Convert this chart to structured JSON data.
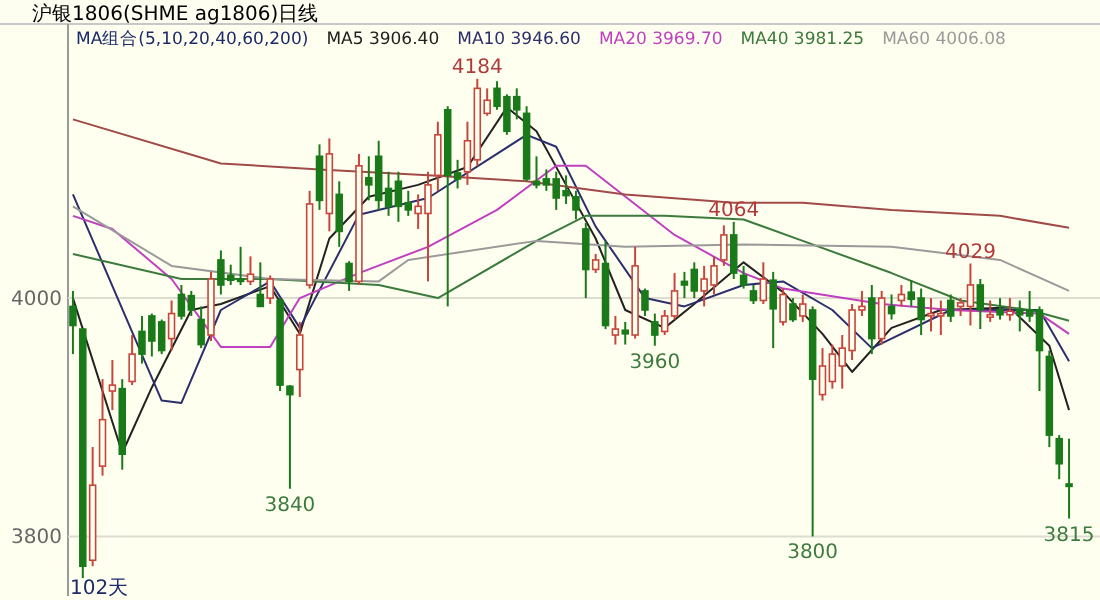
{
  "chart_data": {
    "type": "candlestick",
    "title": "沪银1806(SHME ag1806)日线",
    "legend_title": "MA组合(5,10,20,40,60,200)",
    "legend": "top",
    "grid": "y",
    "ylim": [
      3750,
      4230
    ],
    "yticks": [
      4000,
      3800
    ],
    "categories": [
      null,
      null,
      null,
      null,
      null,
      null,
      null,
      null,
      null,
      null,
      null,
      null,
      null,
      null,
      null,
      null,
      null,
      null,
      null,
      null,
      null,
      null,
      null,
      null,
      null,
      null,
      null,
      null,
      null,
      null,
      null,
      null,
      null,
      null,
      null,
      null,
      null,
      null,
      null,
      null,
      null,
      null,
      null,
      null,
      null,
      null,
      null,
      null,
      null,
      null,
      null,
      null,
      null,
      null,
      null,
      null,
      null,
      null,
      null,
      null,
      null,
      null,
      null,
      null,
      null,
      null,
      null,
      null,
      null,
      null,
      null,
      null,
      null,
      null,
      null,
      null,
      null,
      null,
      null,
      null,
      null,
      null,
      null,
      null,
      null,
      null,
      null,
      null,
      null,
      null,
      null,
      null,
      null,
      null,
      null,
      null,
      null,
      null,
      null,
      null,
      null,
      null
    ],
    "ohlc": [
      [
        3993,
        4006,
        3953,
        3977
      ],
      [
        3974,
        3974,
        3765,
        3775
      ],
      [
        3780,
        3875,
        3775,
        3843
      ],
      [
        3859,
        3932,
        3851,
        3898
      ],
      [
        3922,
        3948,
        3906,
        3927
      ],
      [
        3924,
        3932,
        3856,
        3869
      ],
      [
        3930,
        3969,
        3927,
        3953
      ],
      [
        3972,
        3985,
        3945,
        3953
      ],
      [
        3985,
        3987,
        3951,
        3964
      ],
      [
        3980,
        3982,
        3953,
        3956
      ],
      [
        3966,
        3998,
        3956,
        3987
      ],
      [
        4003,
        4011,
        3982,
        3985
      ],
      [
        4002,
        4006,
        3985,
        3990
      ],
      [
        3982,
        3993,
        3958,
        3961
      ],
      [
        3969,
        4022,
        3964,
        4016
      ],
      [
        4032,
        4040,
        4003,
        4011
      ],
      [
        4019,
        4028,
        4011,
        4015
      ],
      [
        4016,
        4043,
        4011,
        4014
      ],
      [
        4014,
        4035,
        4011,
        4020
      ],
      [
        4003,
        4030,
        3993,
        3993
      ],
      [
        4000,
        4019,
        3995,
        4016
      ],
      [
        3998,
        4000,
        3922,
        3927
      ],
      [
        3926,
        3927,
        3840,
        3919
      ],
      [
        3940,
        3980,
        3917,
        3969
      ],
      [
        4011,
        4090,
        4008,
        4079
      ],
      [
        4119,
        4129,
        4074,
        4082
      ],
      [
        4071,
        4134,
        4056,
        4121
      ],
      [
        4087,
        4098,
        4043,
        4056
      ],
      [
        4029,
        4031,
        4006,
        4014
      ],
      [
        4014,
        4121,
        4011,
        4111
      ],
      [
        4101,
        4119,
        4082,
        4095
      ],
      [
        4119,
        4132,
        4074,
        4082
      ],
      [
        4092,
        4106,
        4069,
        4077
      ],
      [
        4098,
        4106,
        4064,
        4077
      ],
      [
        4080,
        4090,
        4069,
        4074
      ],
      [
        4071,
        4087,
        4058,
        4077
      ],
      [
        4071,
        4106,
        4014,
        4095
      ],
      [
        4103,
        4148,
        4090,
        4137
      ],
      [
        4158,
        4161,
        3993,
        4103
      ],
      [
        4105,
        4116,
        4092,
        4100
      ],
      [
        4106,
        4148,
        4095,
        4132
      ],
      [
        4116,
        4184,
        4111,
        4176
      ],
      [
        4155,
        4176,
        4153,
        4166
      ],
      [
        4176,
        4182,
        4158,
        4161
      ],
      [
        4169,
        4171,
        4137,
        4140
      ],
      [
        4169,
        4176,
        4150,
        4158
      ],
      [
        4155,
        4161,
        4098,
        4100
      ],
      [
        4098,
        4119,
        4092,
        4095
      ],
      [
        4100,
        4108,
        4090,
        4095
      ],
      [
        4100,
        4106,
        4074,
        4084
      ],
      [
        4090,
        4103,
        4079,
        4086
      ],
      [
        4085,
        4090,
        4066,
        4074
      ],
      [
        4058,
        4063,
        4000,
        4024
      ],
      [
        4024,
        4037,
        4021,
        4032
      ],
      [
        4029,
        4048,
        3974,
        3977
      ],
      [
        3969,
        3985,
        3961,
        3974
      ],
      [
        3973,
        3980,
        3961,
        3970
      ],
      [
        3969,
        4043,
        3966,
        4027
      ],
      [
        4006,
        4008,
        3985,
        3990
      ],
      [
        3980,
        3987,
        3960,
        3969
      ],
      [
        3972,
        3990,
        3969,
        3985
      ],
      [
        3985,
        4021,
        3982,
        4006
      ],
      [
        4014,
        4022,
        4000,
        4011
      ],
      [
        4024,
        4030,
        4000,
        4006
      ],
      [
        4006,
        4027,
        3993,
        4016
      ],
      [
        4011,
        4035,
        4003,
        4027
      ],
      [
        4032,
        4061,
        4027,
        4053
      ],
      [
        4053,
        4064,
        4016,
        4021
      ],
      [
        4019,
        4027,
        4008,
        4011
      ],
      [
        4006,
        4011,
        3995,
        3998
      ],
      [
        3998,
        4030,
        3995,
        4016
      ],
      [
        4015,
        4022,
        3958,
        3991
      ],
      [
        3980,
        4008,
        3977,
        4003
      ],
      [
        3995,
        4000,
        3980,
        3982
      ],
      [
        3985,
        4003,
        3980,
        3995
      ],
      [
        3990,
        3993,
        3800,
        3932
      ],
      [
        3919,
        3958,
        3914,
        3943
      ],
      [
        3930,
        3961,
        3924,
        3953
      ],
      [
        3943,
        3969,
        3924,
        3958
      ],
      [
        3956,
        3995,
        3948,
        3990
      ],
      [
        3990,
        4006,
        3985,
        3993
      ],
      [
        4000,
        4011,
        3953,
        3966
      ],
      [
        3966,
        4006,
        3961,
        4000
      ],
      [
        3993,
        4003,
        3982,
        3987
      ],
      [
        3998,
        4011,
        3993,
        4003
      ],
      [
        4005,
        4015,
        3993,
        3999
      ],
      [
        4000,
        4008,
        3969,
        3982
      ],
      [
        3985,
        4000,
        3972,
        3987
      ],
      [
        3985,
        3998,
        3969,
        3987
      ],
      [
        3998,
        4003,
        3980,
        3985
      ],
      [
        3993,
        4000,
        3985,
        3996
      ],
      [
        3993,
        4029,
        3977,
        4011
      ],
      [
        4011,
        4016,
        3974,
        3990
      ],
      [
        3984,
        3998,
        3980,
        3986
      ],
      [
        3990,
        4000,
        3982,
        3986
      ],
      [
        3986,
        4000,
        3981,
        3989
      ],
      [
        3990,
        3998,
        3972,
        3986
      ],
      [
        3990,
        4006,
        3980,
        3985
      ],
      [
        3990,
        3993,
        3922,
        3956
      ],
      [
        3951,
        3956,
        3875,
        3885
      ],
      [
        3882,
        3885,
        3848,
        3861
      ],
      [
        3844,
        3882,
        3815,
        3842
      ]
    ],
    "series": [
      {
        "type": "line",
        "name": "MA5 3906.40",
        "color": "#222222",
        "values": [
          4000,
          null,
          null,
          null,
          null,
          3870,
          null,
          null,
          3925,
          null,
          null,
          null,
          3990,
          null,
          null,
          3995,
          null,
          null,
          null,
          null,
          4010,
          null,
          null,
          3970,
          null,
          null,
          4050,
          null,
          null,
          null,
          4085,
          null,
          null,
          null,
          null,
          4095,
          null,
          null,
          null,
          null,
          4110,
          null,
          null,
          null,
          4160,
          null,
          null,
          4140,
          null,
          null,
          4095,
          null,
          null,
          4050,
          null,
          null,
          3990,
          null,
          null,
          null,
          3975,
          null,
          null,
          3995,
          null,
          null,
          null,
          null,
          4030,
          null,
          null,
          null,
          4005,
          null,
          null,
          null,
          3970,
          null,
          null,
          3938,
          null,
          null,
          null,
          3975,
          null,
          null,
          null,
          null,
          3990,
          null,
          null,
          null,
          null,
          null,
          null,
          3992,
          null,
          null,
          null,
          3960,
          null,
          3906
        ]
      },
      {
        "type": "line",
        "name": "MA10 3946.60",
        "color": "#2b2f6e",
        "values": [
          4087,
          null,
          null,
          null,
          null,
          null,
          null,
          null,
          null,
          3914,
          null,
          3912,
          null,
          null,
          null,
          3990,
          null,
          null,
          null,
          null,
          4014,
          null,
          null,
          3975,
          null,
          null,
          null,
          null,
          null,
          4070,
          null,
          null,
          null,
          null,
          null,
          null,
          4084,
          null,
          null,
          null,
          null,
          null,
          null,
          null,
          null,
          null,
          4137,
          null,
          null,
          4127,
          null,
          null,
          null,
          4060,
          null,
          null,
          null,
          null,
          4000,
          null,
          null,
          null,
          3993,
          null,
          null,
          null,
          null,
          null,
          4011,
          null,
          null,
          null,
          4014,
          null,
          null,
          null,
          null,
          3990,
          null,
          null,
          null,
          3958,
          null,
          null,
          null,
          null,
          null,
          null,
          null,
          3990,
          null,
          null,
          null,
          null,
          null,
          null,
          null,
          null,
          3990,
          null,
          null,
          3947
        ]
      },
      {
        "type": "line",
        "name": "MA20 3969.70",
        "color": "#c040c0",
        "values": [
          4069,
          null,
          null,
          null,
          4058,
          null,
          null,
          null,
          null,
          null,
          4016,
          null,
          null,
          null,
          null,
          3959,
          null,
          null,
          null,
          null,
          3959,
          null,
          null,
          4000,
          null,
          null,
          null,
          null,
          null,
          4021,
          null,
          null,
          null,
          null,
          null,
          null,
          4043,
          null,
          null,
          null,
          null,
          null,
          null,
          4074,
          null,
          null,
          null,
          null,
          null,
          4111,
          null,
          null,
          4111,
          null,
          null,
          null,
          null,
          null,
          null,
          null,
          null,
          4053,
          null,
          null,
          null,
          null,
          null,
          null,
          4021,
          null,
          null,
          null,
          4008,
          null,
          null,
          null,
          null,
          null,
          null,
          null,
          null,
          null,
          3995,
          null,
          null,
          null,
          null,
          null,
          null,
          3990,
          null,
          null,
          null,
          null,
          null,
          null,
          null,
          null,
          3987,
          null,
          null,
          3970
        ]
      },
      {
        "type": "line",
        "name": "MA40 3981.25",
        "color": "#3d7a3d",
        "values": [
          4037,
          null,
          null,
          null,
          null,
          null,
          null,
          null,
          null,
          null,
          null,
          4016,
          null,
          null,
          null,
          null,
          null,
          null,
          null,
          null,
          4016,
          null,
          null,
          null,
          null,
          null,
          null,
          null,
          null,
          null,
          null,
          4011,
          null,
          null,
          null,
          null,
          null,
          4000,
          null,
          null,
          null,
          null,
          null,
          null,
          null,
          null,
          null,
          4048,
          null,
          null,
          null,
          null,
          4069,
          null,
          null,
          null,
          null,
          null,
          null,
          null,
          4069,
          null,
          null,
          null,
          null,
          null,
          null,
          null,
          4066,
          null,
          null,
          null,
          null,
          null,
          4048,
          null,
          null,
          null,
          null,
          null,
          null,
          null,
          null,
          4021,
          null,
          null,
          null,
          null,
          null,
          null,
          3998,
          null,
          null,
          null,
          null,
          null,
          null,
          3990,
          null,
          null,
          null,
          3981
        ]
      },
      {
        "type": "line",
        "name": "MA60 4006.08",
        "color": "#9a9a9a",
        "values": [
          4077,
          null,
          null,
          null,
          null,
          null,
          null,
          null,
          null,
          null,
          4027,
          null,
          null,
          null,
          null,
          null,
          null,
          null,
          null,
          null,
          4016,
          null,
          null,
          null,
          null,
          null,
          null,
          null,
          null,
          null,
          null,
          4014,
          null,
          null,
          4032,
          null,
          null,
          null,
          null,
          null,
          null,
          null,
          null,
          null,
          null,
          null,
          null,
          4048,
          null,
          null,
          null,
          null,
          null,
          null,
          null,
          null,
          4043,
          null,
          null,
          null,
          null,
          null,
          null,
          null,
          null,
          null,
          null,
          null,
          4045,
          null,
          null,
          null,
          null,
          null,
          null,
          null,
          null,
          null,
          null,
          null,
          null,
          null,
          null,
          4043,
          null,
          null,
          null,
          null,
          null,
          null,
          null,
          null,
          null,
          null,
          4032,
          null,
          null,
          null,
          null,
          null,
          null,
          4006
        ]
      },
      {
        "type": "line",
        "color": "#a04a4a",
        "values": [
          4150,
          null,
          null,
          null,
          null,
          null,
          null,
          null,
          null,
          null,
          null,
          null,
          null,
          null,
          null,
          4113,
          null,
          null,
          null,
          null,
          null,
          null,
          null,
          null,
          null,
          4108,
          null,
          null,
          null,
          null,
          null,
          null,
          null,
          null,
          null,
          null,
          4103,
          null,
          null,
          null,
          null,
          null,
          null,
          null,
          null,
          null,
          4098,
          null,
          null,
          null,
          null,
          null,
          null,
          null,
          null,
          null,
          4087,
          null,
          null,
          null,
          null,
          null,
          null,
          null,
          null,
          null,
          null,
          4080,
          null,
          null,
          null,
          null,
          null,
          null,
          4080,
          null,
          null,
          null,
          null,
          null,
          null,
          null,
          null,
          4074,
          null,
          null,
          null,
          null,
          null,
          null,
          null,
          null,
          null,
          null,
          4069,
          null,
          null,
          null,
          null,
          null,
          null,
          4059
        ]
      }
    ],
    "annotations": [
      "4184",
      "3840",
      "3960",
      "4064",
      "3800",
      "4029",
      "3815",
      "102天"
    ]
  }
}
